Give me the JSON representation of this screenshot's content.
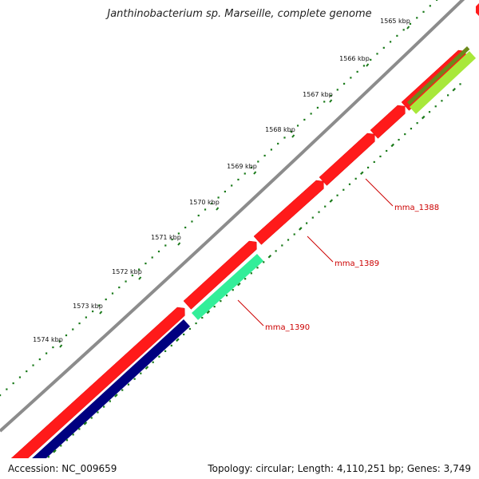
{
  "title": "Janthinobacterium sp. Marseille, complete genome",
  "footer": {
    "accession": "Accession: NC_009659",
    "info": "Topology: circular; Length: 4,110,251 bp; Genes: 3,749"
  },
  "colors": {
    "backbone": "#8c8c8c",
    "forward_gene": "#ff1a1a",
    "reverse_gene_1": "#000080",
    "reverse_gene_2": "#33ee99",
    "reverse_gene_3": "#a8e83a",
    "tick": "#1a7a1a",
    "gene_label": "#cc0000"
  },
  "ticks": [
    {
      "kbp": 1565,
      "label": "1565 kbp"
    },
    {
      "kbp": 1566,
      "label": "1566 kbp"
    },
    {
      "kbp": 1567,
      "label": "1567 kbp"
    },
    {
      "kbp": 1568,
      "label": "1568 kbp"
    },
    {
      "kbp": 1569,
      "label": "1569 kbp"
    },
    {
      "kbp": 1570,
      "label": "1570 kbp"
    },
    {
      "kbp": 1571,
      "label": "1571 kbp"
    },
    {
      "kbp": 1572,
      "label": "1572 kbp"
    },
    {
      "kbp": 1573,
      "label": "1573 kbp"
    },
    {
      "kbp": 1574,
      "label": "1574 kbp"
    }
  ],
  "gene_labels": [
    {
      "name": "mma_1388"
    },
    {
      "name": "mma_1389"
    },
    {
      "name": "mma_1390"
    }
  ]
}
